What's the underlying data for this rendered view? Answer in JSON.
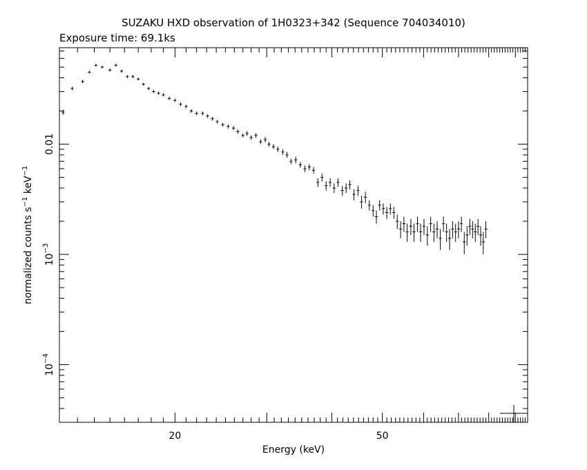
{
  "chart_data": {
    "type": "scatter",
    "title": "SUZAKU HXD observation of 1H0323+342 (Sequence 704034010)",
    "subtitle": "Exposure time: 69.1ks",
    "xlabel": "Energy (keV)",
    "ylabel": {
      "prefix": "normalized counts s",
      "sup1": "−1",
      "middle": " keV",
      "sup2": "−1"
    },
    "x_scale": "log",
    "y_scale": "log",
    "xlim": [
      12,
      95
    ],
    "ylim": [
      3e-05,
      0.075
    ],
    "x_ticks": [
      {
        "value": 20,
        "label": "20"
      },
      {
        "value": 50,
        "label": "50"
      }
    ],
    "y_ticks": [
      {
        "value": 0.01,
        "label": "0.01"
      },
      {
        "value": 0.001,
        "base": "10",
        "exp": "−3"
      },
      {
        "value": 0.0001,
        "base": "10",
        "exp": "−4"
      }
    ],
    "grid": false,
    "legend": "none",
    "series": [
      {
        "points": [
          [
            12.2,
            0.0195,
            0.001
          ],
          [
            12.7,
            0.032,
            0.0012
          ],
          [
            13.3,
            0.037,
            0.0013
          ],
          [
            13.7,
            0.045,
            0.0015
          ],
          [
            14.1,
            0.052,
            0.0016
          ],
          [
            14.5,
            0.05,
            0.0015
          ],
          [
            15.0,
            0.047,
            0.0015
          ],
          [
            15.4,
            0.052,
            0.0016
          ],
          [
            15.8,
            0.046,
            0.0015
          ],
          [
            16.2,
            0.041,
            0.0013
          ],
          [
            16.6,
            0.041,
            0.0013
          ],
          [
            17.0,
            0.039,
            0.0012
          ],
          [
            17.4,
            0.035,
            0.0011
          ],
          [
            17.8,
            0.032,
            0.001
          ],
          [
            18.2,
            0.03,
            0.001
          ],
          [
            18.6,
            0.029,
            0.0009
          ],
          [
            19.0,
            0.028,
            0.0009
          ],
          [
            19.5,
            0.026,
            0.0009
          ],
          [
            20.0,
            0.025,
            0.0008
          ],
          [
            20.5,
            0.023,
            0.0008
          ],
          [
            21.0,
            0.022,
            0.0008
          ],
          [
            21.5,
            0.02,
            0.0007
          ],
          [
            22.0,
            0.019,
            0.0007
          ],
          [
            22.6,
            0.019,
            0.0007
          ],
          [
            23.1,
            0.018,
            0.0007
          ],
          [
            23.6,
            0.017,
            0.0007
          ],
          [
            24.1,
            0.016,
            0.0006
          ],
          [
            24.7,
            0.015,
            0.0006
          ],
          [
            25.3,
            0.0145,
            0.0006
          ],
          [
            25.9,
            0.014,
            0.0006
          ],
          [
            26.4,
            0.013,
            0.0006
          ],
          [
            27.0,
            0.012,
            0.0005
          ],
          [
            27.5,
            0.0125,
            0.0006
          ],
          [
            28.0,
            0.0115,
            0.0005
          ],
          [
            28.6,
            0.012,
            0.0006
          ],
          [
            29.2,
            0.0105,
            0.0005
          ],
          [
            29.8,
            0.011,
            0.0006
          ],
          [
            30.3,
            0.01,
            0.0005
          ],
          [
            30.9,
            0.0095,
            0.0005
          ],
          [
            31.5,
            0.009,
            0.0005
          ],
          [
            32.2,
            0.0085,
            0.0005
          ],
          [
            32.8,
            0.008,
            0.0005
          ],
          [
            33.4,
            0.007,
            0.0004
          ],
          [
            34.1,
            0.0072,
            0.0005
          ],
          [
            34.8,
            0.0065,
            0.0004
          ],
          [
            35.5,
            0.006,
            0.0004
          ],
          [
            36.2,
            0.0062,
            0.0004
          ],
          [
            36.9,
            0.0058,
            0.0004
          ],
          [
            37.6,
            0.0045,
            0.0004
          ],
          [
            38.3,
            0.005,
            0.0004
          ],
          [
            39.0,
            0.0042,
            0.0004
          ],
          [
            39.7,
            0.0045,
            0.0004
          ],
          [
            40.4,
            0.004,
            0.0004
          ],
          [
            41.1,
            0.0045,
            0.0004
          ],
          [
            41.9,
            0.0038,
            0.0004
          ],
          [
            42.6,
            0.004,
            0.0004
          ],
          [
            43.3,
            0.0043,
            0.0004
          ],
          [
            44.1,
            0.0035,
            0.0004
          ],
          [
            44.9,
            0.0038,
            0.0004
          ],
          [
            45.6,
            0.003,
            0.0004
          ],
          [
            46.4,
            0.0033,
            0.0004
          ],
          [
            47.2,
            0.0028,
            0.0003
          ],
          [
            48.0,
            0.0025,
            0.0003
          ],
          [
            48.7,
            0.0022,
            0.0003
          ],
          [
            49.4,
            0.0028,
            0.0003
          ],
          [
            50.2,
            0.0026,
            0.0003
          ],
          [
            51.0,
            0.0024,
            0.0003
          ],
          [
            51.8,
            0.0026,
            0.0003
          ],
          [
            52.6,
            0.0024,
            0.0003
          ],
          [
            53.4,
            0.002,
            0.0003
          ],
          [
            54.2,
            0.0017,
            0.0003
          ],
          [
            55.0,
            0.0019,
            0.0003
          ],
          [
            55.8,
            0.0016,
            0.0003
          ],
          [
            56.7,
            0.0018,
            0.0003
          ],
          [
            57.5,
            0.0016,
            0.0003
          ],
          [
            58.4,
            0.0019,
            0.0003
          ],
          [
            59.2,
            0.0016,
            0.0003
          ],
          [
            60.1,
            0.0018,
            0.0003
          ],
          [
            61.0,
            0.0015,
            0.0003
          ],
          [
            61.9,
            0.0019,
            0.0003
          ],
          [
            62.8,
            0.0016,
            0.0003
          ],
          [
            63.7,
            0.0017,
            0.0003
          ],
          [
            64.6,
            0.0014,
            0.0003
          ],
          [
            65.5,
            0.0019,
            0.0003
          ],
          [
            66.4,
            0.0016,
            0.0003
          ],
          [
            67.3,
            0.0014,
            0.0003
          ],
          [
            68.2,
            0.0017,
            0.0003
          ],
          [
            69.1,
            0.0016,
            0.0003
          ],
          [
            70.0,
            0.0017,
            0.0003
          ],
          [
            70.9,
            0.0019,
            0.0003
          ],
          [
            71.8,
            0.0013,
            0.0003
          ],
          [
            72.7,
            0.0015,
            0.0003
          ],
          [
            73.6,
            0.0018,
            0.0003
          ],
          [
            74.5,
            0.0017,
            0.0003
          ],
          [
            75.4,
            0.0016,
            0.0003
          ],
          [
            76.3,
            0.0018,
            0.0003
          ],
          [
            77.2,
            0.0015,
            0.0003
          ],
          [
            78.1,
            0.0013,
            0.0003
          ],
          [
            79.0,
            0.0017,
            0.0003
          ]
        ],
        "x_half_width_frac": 0.0065
      }
    ]
  }
}
